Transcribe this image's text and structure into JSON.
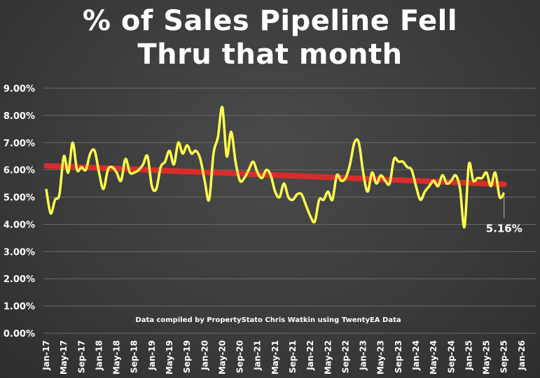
{
  "chart_data": {
    "type": "line",
    "title_lines": [
      "% of Sales Pipeline Fell",
      "Thru that month"
    ],
    "xlabel": "",
    "ylabel": "",
    "ylim": [
      0,
      9
    ],
    "y_tick_labels": [
      "0.00%",
      "1.00%",
      "2.00%",
      "3.00%",
      "4.00%",
      "5.00%",
      "6.00%",
      "7.00%",
      "8.00%",
      "9.00%"
    ],
    "x_tick_labels": [
      "Jan-17",
      "May-17",
      "Sep-17",
      "Jan-18",
      "May-18",
      "Sep-18",
      "Jan-19",
      "May-19",
      "Sep-19",
      "Jan-20",
      "May-20",
      "Sep-20",
      "Jan-21",
      "May-21",
      "Sep-21",
      "Jan-22",
      "May-22",
      "Sep-22",
      "Jan-23",
      "May-23",
      "Sep-23",
      "Jan-24",
      "May-24",
      "Sep-24",
      "Jan-25",
      "May-25",
      "Sep-25",
      "Jan-26"
    ],
    "grid": true,
    "annotation": "Data compiled by PropertyStato Chris Watkin using TwentyEA Data",
    "last_value_label": "5.16%",
    "series": [
      {
        "color": "#ffff4d",
        "values": [
          5.3,
          4.4,
          4.9,
          5.1,
          6.5,
          5.9,
          7.0,
          6.0,
          6.1,
          6.0,
          6.6,
          6.7,
          5.9,
          5.3,
          6.0,
          6.1,
          5.9,
          5.6,
          6.4,
          5.9,
          5.9,
          6.0,
          6.2,
          6.5,
          5.4,
          5.3,
          6.1,
          6.3,
          6.7,
          6.2,
          7.0,
          6.6,
          6.9,
          6.6,
          6.7,
          6.4,
          5.6,
          4.9,
          6.6,
          7.2,
          8.3,
          6.5,
          7.4,
          6.3,
          5.6,
          5.7,
          6.0,
          6.3,
          5.9,
          5.7,
          6.0,
          5.8,
          5.2,
          5.0,
          5.5,
          5.0,
          4.9,
          5.1,
          5.1,
          4.7,
          4.3,
          4.1,
          4.9,
          4.9,
          5.2,
          4.9,
          5.8,
          5.6,
          5.7,
          6.2,
          7.0,
          7.0,
          5.9,
          5.2,
          5.9,
          5.5,
          5.8,
          5.6,
          5.5,
          6.4,
          6.3,
          6.3,
          6.1,
          6.0,
          5.4,
          4.9,
          5.2,
          5.4,
          5.6,
          5.4,
          5.8,
          5.5,
          5.6,
          5.8,
          5.3,
          3.9,
          6.2,
          5.6,
          5.7,
          5.7,
          5.9,
          5.4,
          5.9,
          5.0,
          5.16
        ]
      },
      {
        "color": "#d92d2d",
        "trend": [
          6.15,
          5.47
        ]
      }
    ]
  }
}
